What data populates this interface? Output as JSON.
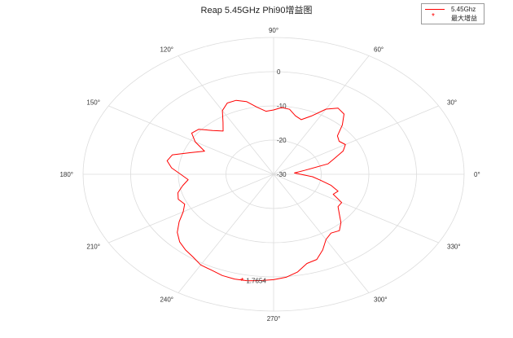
{
  "chart_data": {
    "type": "polar-line",
    "title": "Reap 5.45GHz Phi90增益图",
    "angle_unit": "deg",
    "angle_ticks": [
      0,
      30,
      60,
      90,
      120,
      150,
      180,
      210,
      240,
      270,
      300,
      330
    ],
    "angle_tick_labels": [
      "0°",
      "30°",
      "60°",
      "90°",
      "120°",
      "150°",
      "180°",
      "210°",
      "240°",
      "270°",
      "300°",
      "330°"
    ],
    "rlim": [
      -30,
      10
    ],
    "r_ticks": [
      -30,
      -20,
      -10,
      0
    ],
    "r_tick_labels": [
      "-30",
      "-20",
      "-10",
      "0"
    ],
    "grid": true,
    "legend_placement": "top-right",
    "series": [
      {
        "name": "5.45Ghz",
        "color": "#ff0000",
        "theta": [
          0,
          5,
          10,
          15,
          20,
          25,
          30,
          35,
          40,
          45,
          50,
          55,
          60,
          65,
          70,
          75,
          80,
          85,
          90,
          95,
          100,
          105,
          110,
          115,
          120,
          125,
          130,
          135,
          140,
          145,
          150,
          155,
          160,
          165,
          170,
          175,
          180,
          185,
          190,
          195,
          200,
          205,
          210,
          215,
          220,
          225,
          230,
          235,
          240,
          245,
          250,
          255,
          260,
          265,
          270,
          275,
          280,
          285,
          290,
          295,
          300,
          305,
          310,
          315,
          320,
          325,
          330,
          335,
          340,
          345,
          350,
          355,
          360
        ],
        "r": [
          -24.3,
          -25.6,
          -23.4,
          -18.2,
          -16.4,
          -13.9,
          -12.6,
          -13.2,
          -12.5,
          -9.6,
          -7.0,
          -6.4,
          -8.0,
          -11.2,
          -13.0,
          -12.3,
          -10.7,
          -10.4,
          -11.2,
          -11.5,
          -10.1,
          -8.0,
          -7.0,
          -7.0,
          -8.5,
          -11.5,
          -13.5,
          -11.9,
          -9.5,
          -9.0,
          -11.0,
          -14.0,
          -11.5,
          -8.0,
          -7.3,
          -8.5,
          -10.5,
          -12.0,
          -10.6,
          -9.2,
          -8.7,
          -9.4,
          -8.1,
          -5.8,
          -3.6,
          -2.1,
          -1.2,
          -0.5,
          0.6,
          0.9,
          1.5,
          1.7,
          1.6,
          1.2,
          0.8,
          0.2,
          -1.0,
          -3.0,
          -3.5,
          -5.6,
          -8.0,
          -9.0,
          -8.5,
          -10.0,
          -12.0,
          -13.5,
          -13.5,
          -16.2,
          -15.6,
          -17.5,
          -20.0,
          -21.8,
          -24.3
        ]
      },
      {
        "name": "最大增益",
        "color": "#ff0000",
        "marker": "star",
        "theta": [
          258
        ],
        "r": [
          1.7654
        ],
        "label": "1.7654"
      }
    ]
  }
}
